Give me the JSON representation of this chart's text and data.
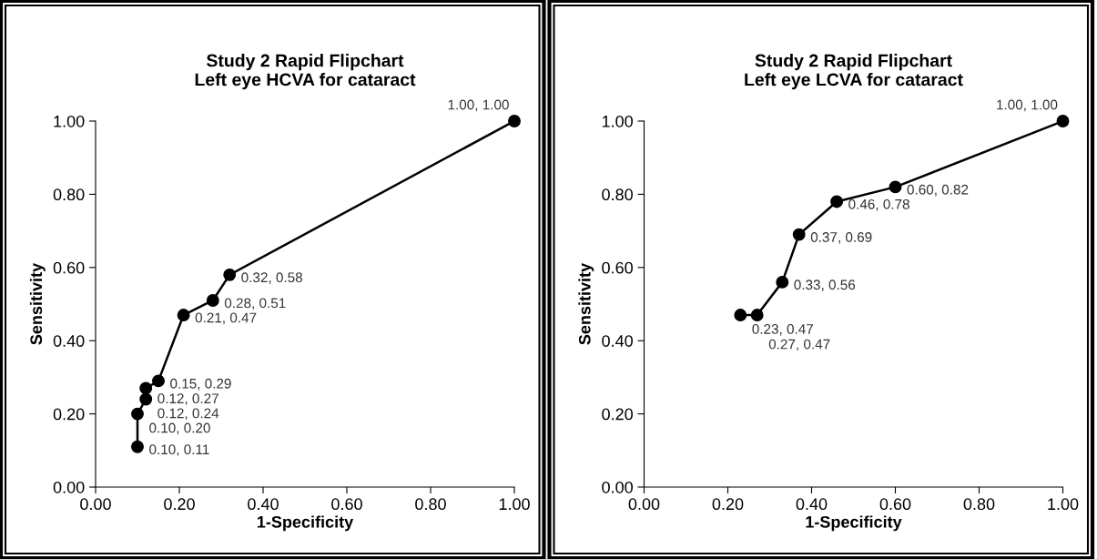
{
  "chart_data": [
    {
      "type": "line",
      "title": "Study 2 Rapid Flipchart\nLeft eye HCVA for cataract",
      "xlabel": "1-Specificity",
      "ylabel": "Sensitivity",
      "x": [
        0.1,
        0.1,
        0.12,
        0.12,
        0.15,
        0.21,
        0.28,
        0.32,
        1.0
      ],
      "values": [
        0.11,
        0.2,
        0.24,
        0.27,
        0.29,
        0.47,
        0.51,
        0.58,
        1.0
      ],
      "value_labels": [
        "0.10, 0.11",
        "0.10, 0.20",
        "0.12, 0.24",
        "0.12, 0.27",
        "0.15, 0.29",
        "0.21, 0.47",
        "0.28, 0.51",
        "0.32, 0.58",
        "1.00, 1.00"
      ],
      "color": "#000000",
      "marker": "circle",
      "line_style": "solid",
      "grid": false,
      "legend": false,
      "xlim": [
        0,
        1
      ],
      "ylim": [
        0,
        1
      ],
      "xticks": [
        {
          "value": 0,
          "label": "0.00"
        },
        {
          "value": 0.2,
          "label": "0.20"
        },
        {
          "value": 0.4,
          "label": "0.40"
        },
        {
          "value": 0.6,
          "label": "0.60"
        },
        {
          "value": 0.8,
          "label": "0.80"
        },
        {
          "value": 1,
          "label": "1.00"
        }
      ],
      "yticks": [
        {
          "value": 0,
          "label": "0.00"
        },
        {
          "value": 0.2,
          "label": "0.20"
        },
        {
          "value": 0.4,
          "label": "0.40"
        },
        {
          "value": 0.6,
          "label": "0.60"
        },
        {
          "value": 0.8,
          "label": "0.80"
        },
        {
          "value": 1,
          "label": "1.00"
        }
      ]
    },
    {
      "type": "line",
      "title": "Study 2 Rapid Flipchart\nLeft eye LCVA for cataract",
      "xlabel": "1-Specificity",
      "ylabel": "Sensitivity",
      "x": [
        0.23,
        0.27,
        0.33,
        0.37,
        0.46,
        0.6,
        1.0
      ],
      "values": [
        0.47,
        0.47,
        0.56,
        0.69,
        0.78,
        0.82,
        1.0
      ],
      "value_labels": [
        "0.23, 0.47",
        "0.27, 0.47",
        "0.33, 0.56",
        "0.37, 0.69",
        "0.46, 0.78",
        "0.60, 0.82",
        "1.00, 1.00"
      ],
      "color": "#000000",
      "marker": "circle",
      "line_style": "solid",
      "grid": false,
      "legend": false,
      "xlim": [
        0,
        1
      ],
      "ylim": [
        0,
        1
      ],
      "xticks": [
        {
          "value": 0,
          "label": "0.00"
        },
        {
          "value": 0.2,
          "label": "0.20"
        },
        {
          "value": 0.4,
          "label": "0.40"
        },
        {
          "value": 0.6,
          "label": "0.60"
        },
        {
          "value": 0.8,
          "label": "0.80"
        },
        {
          "value": 1,
          "label": "1.00"
        }
      ],
      "yticks": [
        {
          "value": 0,
          "label": "0.00"
        },
        {
          "value": 0.2,
          "label": "0.20"
        },
        {
          "value": 0.4,
          "label": "0.40"
        },
        {
          "value": 0.6,
          "label": "0.60"
        },
        {
          "value": 0.8,
          "label": "0.80"
        },
        {
          "value": 1,
          "label": "1.00"
        }
      ]
    }
  ]
}
